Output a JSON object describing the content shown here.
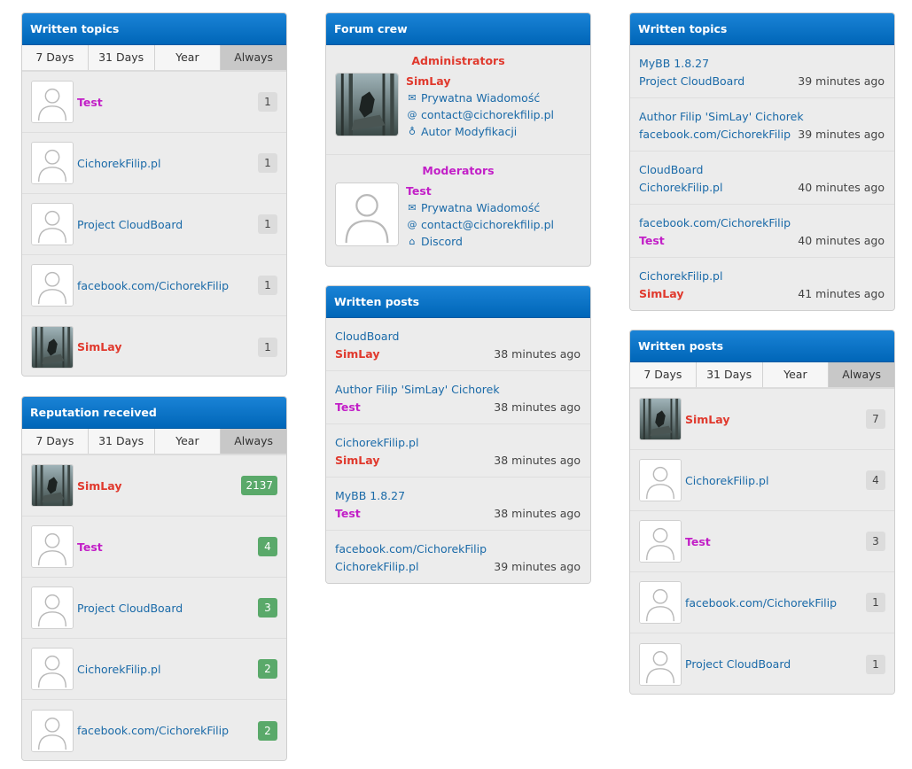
{
  "written_topics_left": {
    "title": "Written topics",
    "tabs": [
      "7 Days",
      "31 Days",
      "Year",
      "Always"
    ],
    "rows": [
      {
        "name": "Test",
        "count": "1"
      },
      {
        "name": "CichorekFilip.pl",
        "count": "1"
      },
      {
        "name": "Project CloudBoard",
        "count": "1"
      },
      {
        "name": "facebook.com/CichorekFilip",
        "count": "1"
      },
      {
        "name": "SimLay",
        "count": "1"
      }
    ]
  },
  "reputation": {
    "title": "Reputation received",
    "tabs": [
      "7 Days",
      "31 Days",
      "Year",
      "Always"
    ],
    "rows": [
      {
        "name": "SimLay",
        "count": "2137"
      },
      {
        "name": "Test",
        "count": "4"
      },
      {
        "name": "Project CloudBoard",
        "count": "3"
      },
      {
        "name": "CichorekFilip.pl",
        "count": "2"
      },
      {
        "name": "facebook.com/CichorekFilip",
        "count": "2"
      }
    ]
  },
  "forum_crew": {
    "title": "Forum crew",
    "admins_title": "Administrators",
    "admin": {
      "name": "SimLay",
      "pm": "Prywatna Wiadomość",
      "email": "contact@cichorekfilip.pl",
      "extra": "Autor Modyfikacji"
    },
    "mods_title": "Moderators",
    "mod": {
      "name": "Test",
      "pm": "Prywatna Wiadomość",
      "email": "contact@cichorekfilip.pl",
      "extra": "Discord"
    }
  },
  "written_posts_middle": {
    "title": "Written posts",
    "rows": [
      {
        "subject": "CloudBoard",
        "user": "SimLay",
        "time": "38 minutes ago"
      },
      {
        "subject": "Author Filip 'SimLay' Cichorek",
        "user": "Test",
        "time": "38 minutes ago"
      },
      {
        "subject": "CichorekFilip.pl",
        "user": "SimLay",
        "time": "38 minutes ago"
      },
      {
        "subject": "MyBB 1.8.27",
        "user": "Test",
        "time": "38 minutes ago"
      },
      {
        "subject": "facebook.com/CichorekFilip",
        "user": "CichorekFilip.pl",
        "time": "39 minutes ago"
      }
    ]
  },
  "written_topics_right": {
    "title": "Written topics",
    "rows": [
      {
        "subject": "MyBB 1.8.27",
        "user": "Project CloudBoard",
        "time": "39 minutes ago"
      },
      {
        "subject": "Author Filip 'SimLay' Cichorek",
        "user": "facebook.com/CichorekFilip",
        "time": "39 minutes ago"
      },
      {
        "subject": "CloudBoard",
        "user": "CichorekFilip.pl",
        "time": "40 minutes ago"
      },
      {
        "subject": "facebook.com/CichorekFilip",
        "user": "Test",
        "time": "40 minutes ago"
      },
      {
        "subject": "CichorekFilip.pl",
        "user": "SimLay",
        "time": "41 minutes ago"
      }
    ]
  },
  "written_posts_right": {
    "title": "Written posts",
    "tabs": [
      "7 Days",
      "31 Days",
      "Year",
      "Always"
    ],
    "rows": [
      {
        "name": "SimLay",
        "count": "7"
      },
      {
        "name": "CichorekFilip.pl",
        "count": "4"
      },
      {
        "name": "Test",
        "count": "3"
      },
      {
        "name": "facebook.com/CichorekFilip",
        "count": "1"
      },
      {
        "name": "Project CloudBoard",
        "count": "1"
      }
    ]
  },
  "colors": {
    "header": "#0066b8",
    "admin": "#e0392d",
    "moderator": "#c21fc7",
    "link": "#1a6aa8",
    "rep_badge": "#5aa96a"
  }
}
